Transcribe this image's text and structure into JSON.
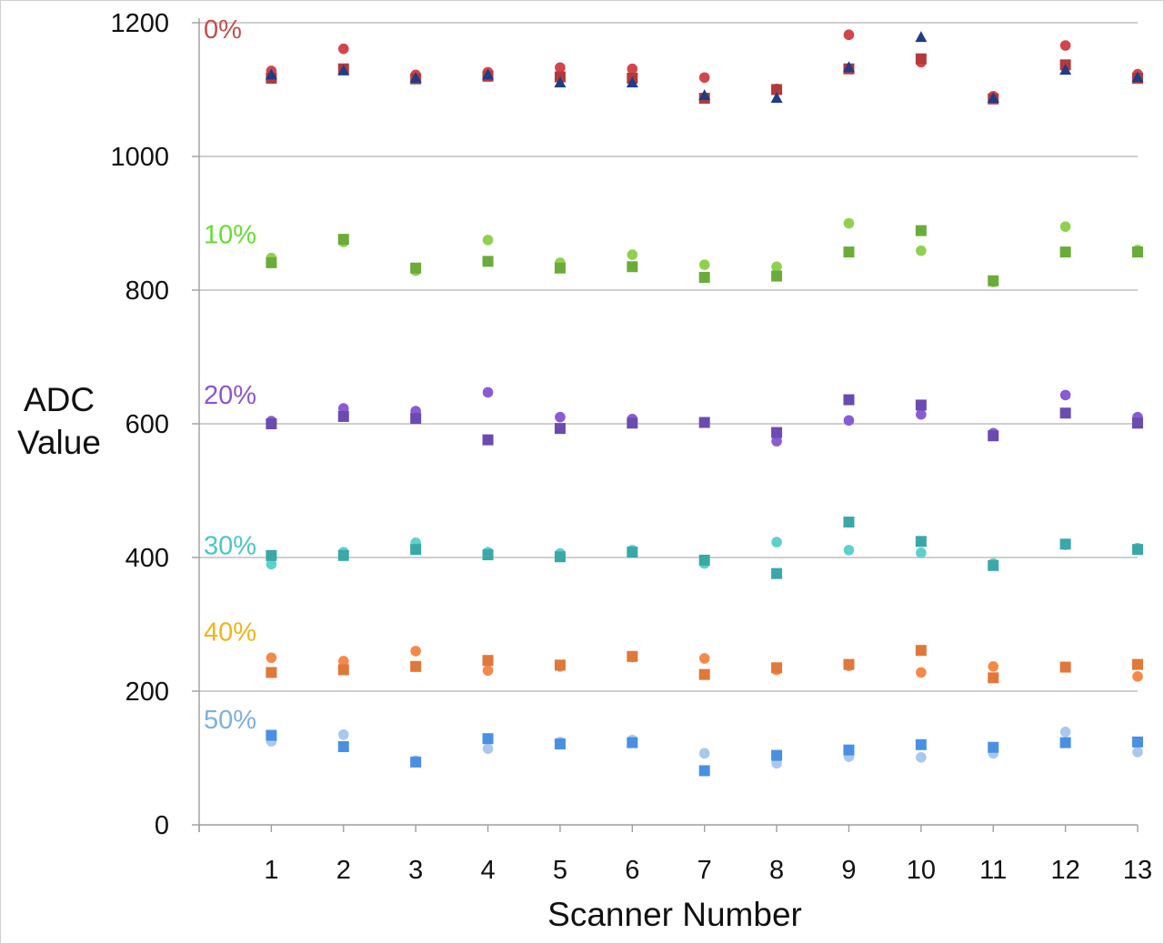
{
  "chart_data": {
    "type": "scatter",
    "xlabel": "Scanner Number",
    "ylabel_lines": [
      "ADC",
      "Value"
    ],
    "x_ticks": [
      "1",
      "2",
      "3",
      "4",
      "5",
      "6",
      "7",
      "8",
      "9",
      "10",
      "11",
      "12",
      "13"
    ],
    "y_ticks": [
      "0",
      "200",
      "400",
      "600",
      "800",
      "1000",
      "1200"
    ],
    "ylim": [
      0,
      1200
    ],
    "xlim": [
      0,
      13
    ],
    "grid": "horizontal",
    "groups": [
      {
        "label": "0%",
        "color": "#c0504d",
        "label_color": "#c0504d",
        "series": [
          {
            "marker": "circle",
            "color": "#d2464b",
            "values": [
              1128,
              1161,
              1122,
              1126,
              1133,
              1131,
              1118,
              1101,
              1182,
              1141,
              1090,
              1166,
              1123
            ]
          },
          {
            "marker": "square",
            "color": "#b33a3a",
            "values": [
              1117,
              1131,
              1116,
              1120,
              1119,
              1117,
              1087,
              1100,
              1131,
              1146,
              1086,
              1137,
              1117
            ]
          },
          {
            "marker": "triangle",
            "color": "#1f3c88",
            "values": [
              1122,
              1128,
              1117,
              1122,
              1110,
              1110,
              1091,
              1087,
              1133,
              1178,
              1087,
              1129,
              1118
            ]
          }
        ]
      },
      {
        "label": "10%",
        "color": "#92d050",
        "label_color": "#66dd33",
        "series": [
          {
            "marker": "circle",
            "color": "#8fd14f",
            "values": [
              848,
              872,
              829,
              875,
              841,
              853,
              838,
              835,
              900,
              859,
              812,
              895,
              860
            ]
          },
          {
            "marker": "square",
            "color": "#6aac3a",
            "values": [
              841,
              876,
              833,
              843,
              833,
              835,
              819,
              821,
              857,
              889,
              814,
              857,
              857
            ]
          }
        ]
      },
      {
        "label": "20%",
        "color": "#8064a2",
        "label_color": "#8e56cc",
        "series": [
          {
            "marker": "circle",
            "color": "#8a5bd4",
            "values": [
              604,
              623,
              619,
              647,
              610,
              607,
              602,
              574,
              605,
              614,
              586,
              643,
              610
            ]
          },
          {
            "marker": "square",
            "color": "#6b4bb0",
            "values": [
              600,
              611,
              608,
              576,
              593,
              601,
              602,
              587,
              636,
              628,
              582,
              616,
              601
            ]
          }
        ]
      },
      {
        "label": "30%",
        "color": "#4bacc6",
        "label_color": "#4cc6c0",
        "series": [
          {
            "marker": "circle",
            "color": "#5fd0cc",
            "values": [
              390,
              408,
              422,
              408,
              406,
              411,
              391,
              423,
              411,
              407,
              391,
              419,
              414
            ]
          },
          {
            "marker": "square",
            "color": "#3aa8a8",
            "values": [
              403,
              403,
              412,
              404,
              401,
              408,
              396,
              376,
              453,
              424,
              388,
              420,
              412
            ]
          }
        ]
      },
      {
        "label": "40%",
        "color": "#f79646",
        "label_color": "#f2b418",
        "series": [
          {
            "marker": "circle",
            "color": "#f5894a",
            "values": [
              250,
              245,
              260,
              231,
              237,
              251,
              249,
              232,
              238,
              228,
              237,
              236,
              222
            ]
          },
          {
            "marker": "square",
            "color": "#e0783a",
            "values": [
              228,
              232,
              237,
              246,
              239,
              252,
              225,
              235,
              240,
              261,
              220,
              236,
              240
            ]
          }
        ]
      },
      {
        "label": "50%",
        "color": "#8db3e2",
        "label_color": "#7fb0e0",
        "series": [
          {
            "marker": "circle",
            "color": "#a9c8ee",
            "values": [
              125,
              135,
              96,
              114,
              124,
              127,
              107,
              92,
              102,
              101,
              107,
              139,
              109
            ]
          },
          {
            "marker": "square",
            "color": "#4a90e2",
            "values": [
              134,
              117,
              94,
              129,
              121,
              123,
              81,
              104,
              112,
              120,
              116,
              123,
              124
            ]
          }
        ]
      }
    ]
  }
}
